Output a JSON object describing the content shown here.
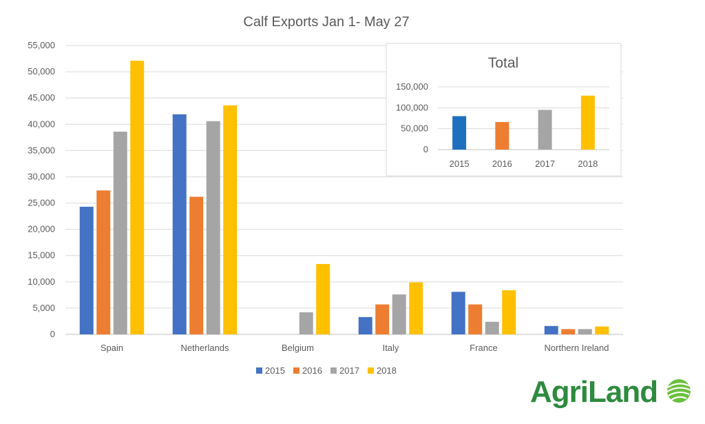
{
  "colors": {
    "2015": "#4472C4",
    "2016": "#ED7D31",
    "2017": "#A5A5A5",
    "2018": "#FFC000",
    "inset_2015": "#1F6FBF",
    "brand_green": "#2E8B3E",
    "text": "#595959",
    "grid": "#D9D9D9"
  },
  "chart_data": [
    {
      "type": "bar",
      "title": "Calf Exports Jan 1- May 27",
      "categories": [
        "Spain",
        "Netherlands",
        "Belgium",
        "Italy",
        "France",
        "Northern Ireland"
      ],
      "series": [
        {
          "name": "2015",
          "values": [
            24300,
            41900,
            0,
            3300,
            8100,
            1600
          ]
        },
        {
          "name": "2016",
          "values": [
            27400,
            26200,
            0,
            5700,
            5700,
            1000
          ]
        },
        {
          "name": "2017",
          "values": [
            38600,
            40600,
            4200,
            7600,
            2400,
            1000
          ]
        },
        {
          "name": "2018",
          "values": [
            52100,
            43600,
            13400,
            9900,
            8400,
            1500
          ]
        }
      ],
      "ylim": [
        0,
        55000
      ],
      "yticks": [
        "0",
        "5,000",
        "10,000",
        "15,000",
        "20,000",
        "25,000",
        "30,000",
        "35,000",
        "40,000",
        "45,000",
        "50,000",
        "55,000"
      ],
      "grid": true,
      "legend": "bottom"
    },
    {
      "type": "bar",
      "title": "Total",
      "categories": [
        "2015",
        "2016",
        "2017",
        "2018"
      ],
      "values": [
        80000,
        66000,
        95000,
        129000
      ],
      "ylim": [
        0,
        150000
      ],
      "yticks": [
        "0",
        "50,000",
        "100,000",
        "150,000"
      ],
      "grid": true
    }
  ],
  "logo": {
    "text_agri": "Agri",
    "text_land": "Land"
  }
}
